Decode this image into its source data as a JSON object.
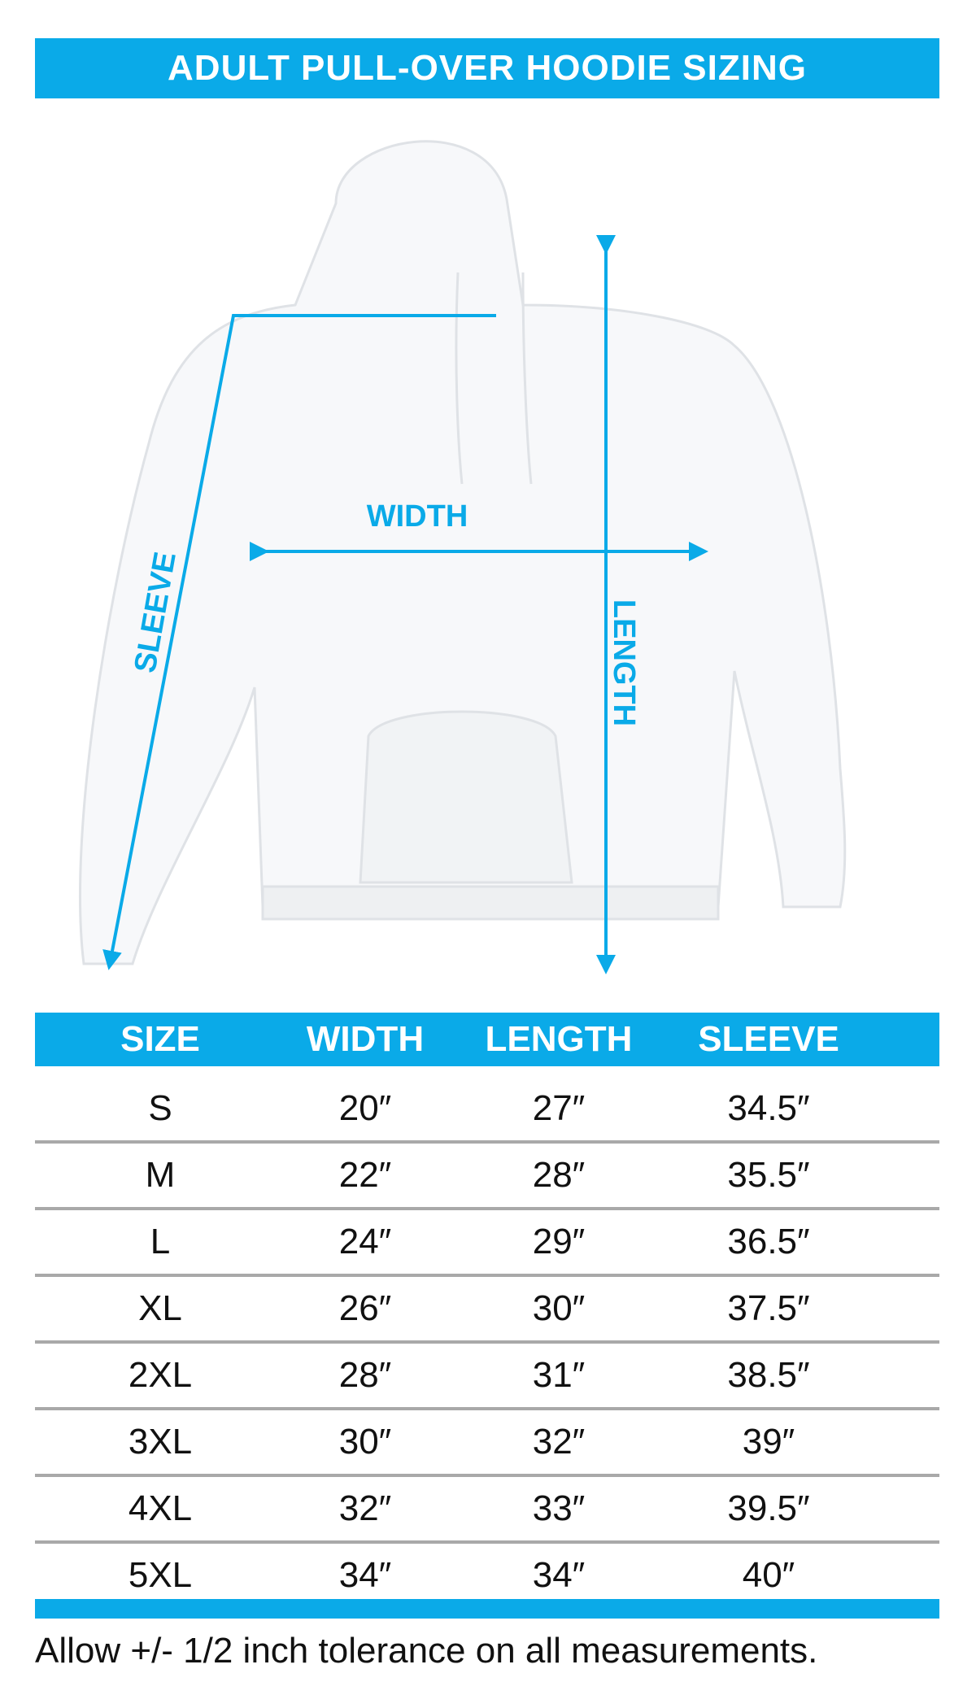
{
  "title": "ADULT PULL-OVER HOODIE SIZING",
  "diagram_labels": {
    "width": "WIDTH",
    "length": "LENGTH",
    "sleeve": "SLEEVE"
  },
  "table": {
    "headers": [
      "SIZE",
      "WIDTH",
      "LENGTH",
      "SLEEVE"
    ],
    "rows": [
      [
        "S",
        "20″",
        "27″",
        "34.5″"
      ],
      [
        "M",
        "22″",
        "28″",
        "35.5″"
      ],
      [
        "L",
        "24″",
        "29″",
        "36.5″"
      ],
      [
        "XL",
        "26″",
        "30″",
        "37.5″"
      ],
      [
        "2XL",
        "28″",
        "31″",
        "38.5″"
      ],
      [
        "3XL",
        "30″",
        "32″",
        "39″"
      ],
      [
        "4XL",
        "32″",
        "33″",
        "39.5″"
      ],
      [
        "5XL",
        "34″",
        "34″",
        "40″"
      ]
    ]
  },
  "footer": "Allow +/- 1/2 inch tolerance on all measurements.",
  "colors": {
    "accent": "#0aaae8",
    "divider": "#a9a9a9"
  }
}
